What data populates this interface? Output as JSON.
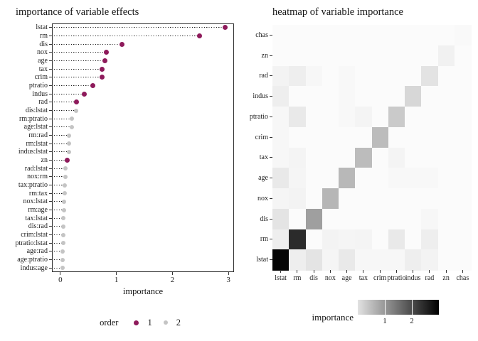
{
  "chart_data": [
    {
      "type": "scatter",
      "title": "importance of variable effects",
      "xlabel": "importance",
      "xlim": [
        -0.15,
        3.1
      ],
      "xticks": [
        0,
        1,
        2,
        3
      ],
      "legend_title": "order",
      "legend": [
        {
          "label": "1",
          "color": "#8E1A5B",
          "size": 7
        },
        {
          "label": "2",
          "color": "#C4C4C4",
          "size": 6
        }
      ],
      "grid": "off",
      "points": [
        {
          "label": "lstat",
          "value": 2.94,
          "order": 1
        },
        {
          "label": "rm",
          "value": 2.49,
          "order": 1
        },
        {
          "label": "dis",
          "value": 1.1,
          "order": 1
        },
        {
          "label": "nox",
          "value": 0.82,
          "order": 1
        },
        {
          "label": "age",
          "value": 0.8,
          "order": 1
        },
        {
          "label": "tax",
          "value": 0.75,
          "order": 1
        },
        {
          "label": "crim",
          "value": 0.75,
          "order": 1
        },
        {
          "label": "ptratio",
          "value": 0.58,
          "order": 1
        },
        {
          "label": "indus",
          "value": 0.43,
          "order": 1
        },
        {
          "label": "rad",
          "value": 0.29,
          "order": 1
        },
        {
          "label": "dis:lstat",
          "value": 0.28,
          "order": 2
        },
        {
          "label": "rm:ptratio",
          "value": 0.21,
          "order": 2
        },
        {
          "label": "age:lstat",
          "value": 0.21,
          "order": 2
        },
        {
          "label": "rm:rad",
          "value": 0.15,
          "order": 2
        },
        {
          "label": "rm:lstat",
          "value": 0.15,
          "order": 2
        },
        {
          "label": "indus:lstat",
          "value": 0.15,
          "order": 2
        },
        {
          "label": "zn",
          "value": 0.12,
          "order": 1
        },
        {
          "label": "rad:lstat",
          "value": 0.09,
          "order": 2
        },
        {
          "label": "nox:rm",
          "value": 0.09,
          "order": 2
        },
        {
          "label": "tax:ptratio",
          "value": 0.08,
          "order": 2
        },
        {
          "label": "rm:tax",
          "value": 0.08,
          "order": 2
        },
        {
          "label": "nox:lstat",
          "value": 0.07,
          "order": 2
        },
        {
          "label": "rm:age",
          "value": 0.07,
          "order": 2
        },
        {
          "label": "tax:lstat",
          "value": 0.05,
          "order": 2
        },
        {
          "label": "dis:rad",
          "value": 0.05,
          "order": 2
        },
        {
          "label": "crim:lstat",
          "value": 0.05,
          "order": 2
        },
        {
          "label": "ptratio:lstat",
          "value": 0.05,
          "order": 2
        },
        {
          "label": "age:rad",
          "value": 0.04,
          "order": 2
        },
        {
          "label": "age:ptratio",
          "value": 0.04,
          "order": 2
        },
        {
          "label": "indus:age",
          "value": 0.04,
          "order": 2
        }
      ]
    },
    {
      "type": "heatmap",
      "title": "heatmap of variable importance",
      "x_categories": [
        "lstat",
        "rm",
        "dis",
        "nox",
        "age",
        "tax",
        "crim",
        "ptratio",
        "indus",
        "rad",
        "zn",
        "chas"
      ],
      "y_categories": [
        "chas",
        "zn",
        "rad",
        "indus",
        "ptratio",
        "crim",
        "tax",
        "age",
        "nox",
        "dis",
        "rm",
        "lstat"
      ],
      "values": [
        [
          0,
          0,
          0,
          0,
          0,
          0,
          0,
          0,
          0,
          0,
          0,
          0.02
        ],
        [
          0,
          0,
          0,
          0,
          0,
          0,
          0,
          0,
          0,
          0,
          0.12,
          0
        ],
        [
          0.09,
          0.15,
          0.05,
          0,
          0.04,
          0,
          0,
          0,
          0,
          0.29,
          0,
          0
        ],
        [
          0.15,
          0,
          0,
          0,
          0.04,
          0,
          0,
          0,
          0.43,
          0,
          0,
          0
        ],
        [
          0.05,
          0.21,
          0,
          0,
          0.04,
          0.08,
          0,
          0.58,
          0,
          0,
          0,
          0
        ],
        [
          0.05,
          0,
          0,
          0,
          0,
          0,
          0.75,
          0,
          0,
          0,
          0,
          0
        ],
        [
          0.05,
          0.08,
          0,
          0,
          0,
          0.75,
          0,
          0.08,
          0,
          0,
          0,
          0
        ],
        [
          0.21,
          0.07,
          0,
          0,
          0.8,
          0,
          0,
          0.04,
          0.04,
          0.04,
          0,
          0
        ],
        [
          0.07,
          0.09,
          0,
          0.82,
          0,
          0,
          0,
          0,
          0,
          0,
          0,
          0
        ],
        [
          0.28,
          0,
          1.1,
          0,
          0,
          0,
          0,
          0,
          0,
          0.05,
          0,
          0
        ],
        [
          0.15,
          2.49,
          0,
          0.09,
          0.07,
          0.08,
          0,
          0.21,
          0,
          0.15,
          0,
          0
        ],
        [
          2.94,
          0.15,
          0.28,
          0.07,
          0.21,
          0.05,
          0.05,
          0.05,
          0.15,
          0.09,
          0,
          0
        ]
      ],
      "scale": {
        "min": 0,
        "max": 3,
        "low_color": "#FBFBFB",
        "high_color": "#000000"
      },
      "legend_title": "importance",
      "legend_ticks": [
        1,
        2
      ],
      "legend_gradient": [
        "#E2E2E2",
        "#000000"
      ],
      "legend_position": "bottom"
    }
  ]
}
